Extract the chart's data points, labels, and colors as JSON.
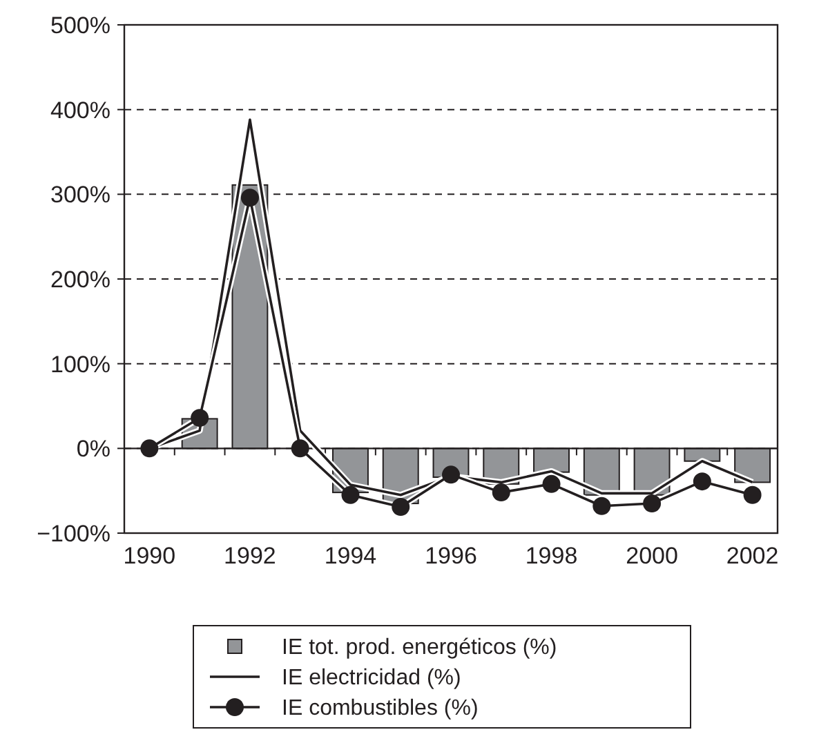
{
  "chart_data": {
    "type": "bar",
    "categories": [
      "1990",
      null,
      "1992",
      null,
      "1994",
      null,
      "1996",
      null,
      "1998",
      null,
      "2000",
      null,
      "2002"
    ],
    "ylim": [
      -100,
      500
    ],
    "yticks": [
      {
        "value": -100,
        "label": "−100%"
      },
      {
        "value": 0,
        "label": "0%"
      },
      {
        "value": 100,
        "label": "100%"
      },
      {
        "value": 200,
        "label": "200%"
      },
      {
        "value": 300,
        "label": "300%"
      },
      {
        "value": 400,
        "label": "400%"
      },
      {
        "value": 500,
        "label": "500%"
      }
    ],
    "grid": "y",
    "legend": "bottom",
    "series": [
      {
        "name": "IE tot. prod. energéticos (%)",
        "color": "#939598",
        "values": [
          0,
          35,
          311,
          0,
          -52,
          -65,
          -34,
          -42,
          -28,
          -55,
          -55,
          -15,
          -40
        ]
      },
      {
        "name": "IE electricidad (%)",
        "type": "line",
        "color": "#231f20",
        "marker": "none",
        "values": [
          0,
          21,
          388,
          21,
          -43,
          -55,
          -33,
          -40,
          -27,
          -53,
          -53,
          -15,
          -40
        ]
      },
      {
        "name": "IE combustibles (%)",
        "type": "line",
        "color": "#231f20",
        "marker": "circle",
        "values": [
          0,
          36,
          296,
          0,
          -55,
          -69,
          -31,
          -52,
          -42,
          -68,
          -65,
          -39,
          -55
        ]
      }
    ]
  }
}
